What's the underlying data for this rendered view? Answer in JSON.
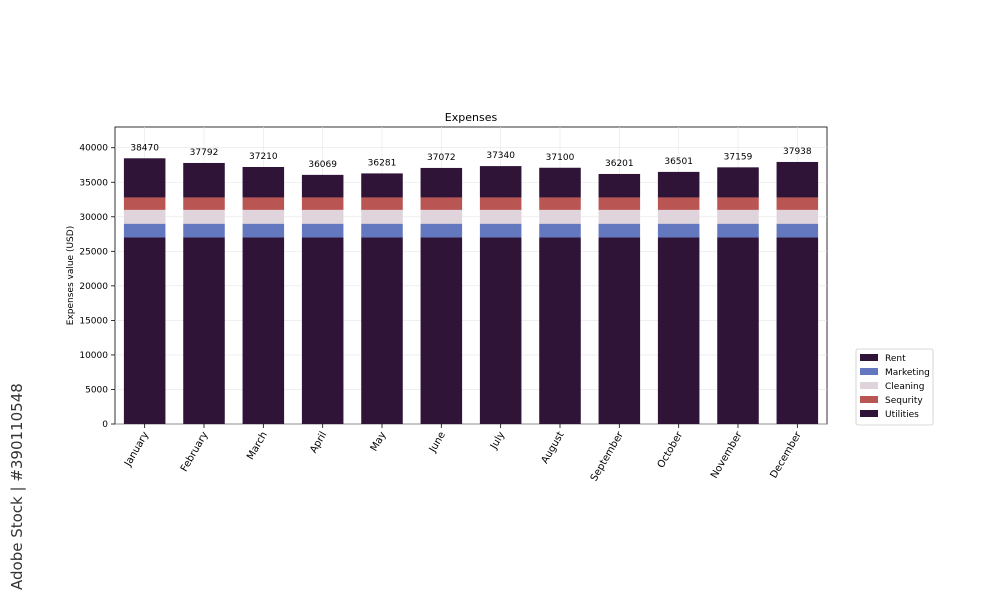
{
  "chart_data": {
    "type": "bar",
    "stacked": true,
    "title": "Expenses",
    "xlabel": "",
    "ylabel": "Expenses value (USD)",
    "ylim": [
      0,
      43000
    ],
    "yticks": [
      0,
      5000,
      10000,
      15000,
      20000,
      25000,
      30000,
      35000,
      40000
    ],
    "grid": true,
    "legend_position": "right",
    "categories": [
      "January",
      "February",
      "March",
      "April",
      "May",
      "June",
      "July",
      "August",
      "September",
      "October",
      "November",
      "December"
    ],
    "totals": [
      38470,
      37792,
      37210,
      36069,
      36281,
      37072,
      37340,
      37100,
      36201,
      36501,
      37159,
      37938
    ],
    "series": [
      {
        "name": "Rent",
        "color": "#2f1438",
        "values": [
          27000,
          27000,
          27000,
          27000,
          27000,
          27000,
          27000,
          27000,
          27000,
          27000,
          27000,
          27000
        ]
      },
      {
        "name": "Marketing",
        "color": "#6378bf",
        "values": [
          2000,
          2000,
          2000,
          2000,
          2000,
          2000,
          2000,
          2000,
          2000,
          2000,
          2000,
          2000
        ]
      },
      {
        "name": "Cleaning",
        "color": "#e0d4dc",
        "values": [
          2000,
          2000,
          2000,
          2000,
          2000,
          2000,
          2000,
          2000,
          2000,
          2000,
          2000,
          2000
        ]
      },
      {
        "name": "Sequrity",
        "color": "#b95552",
        "values": [
          1800,
          1800,
          1800,
          1800,
          1800,
          1800,
          1800,
          1800,
          1800,
          1800,
          1800,
          1800
        ]
      },
      {
        "name": "Utilities",
        "color": "#2f1438",
        "values": [
          5670,
          4992,
          4410,
          3269,
          3481,
          4272,
          4540,
          4300,
          3401,
          3701,
          4359,
          5138
        ]
      }
    ]
  },
  "side_text": "Adobe Stock | #390110548"
}
